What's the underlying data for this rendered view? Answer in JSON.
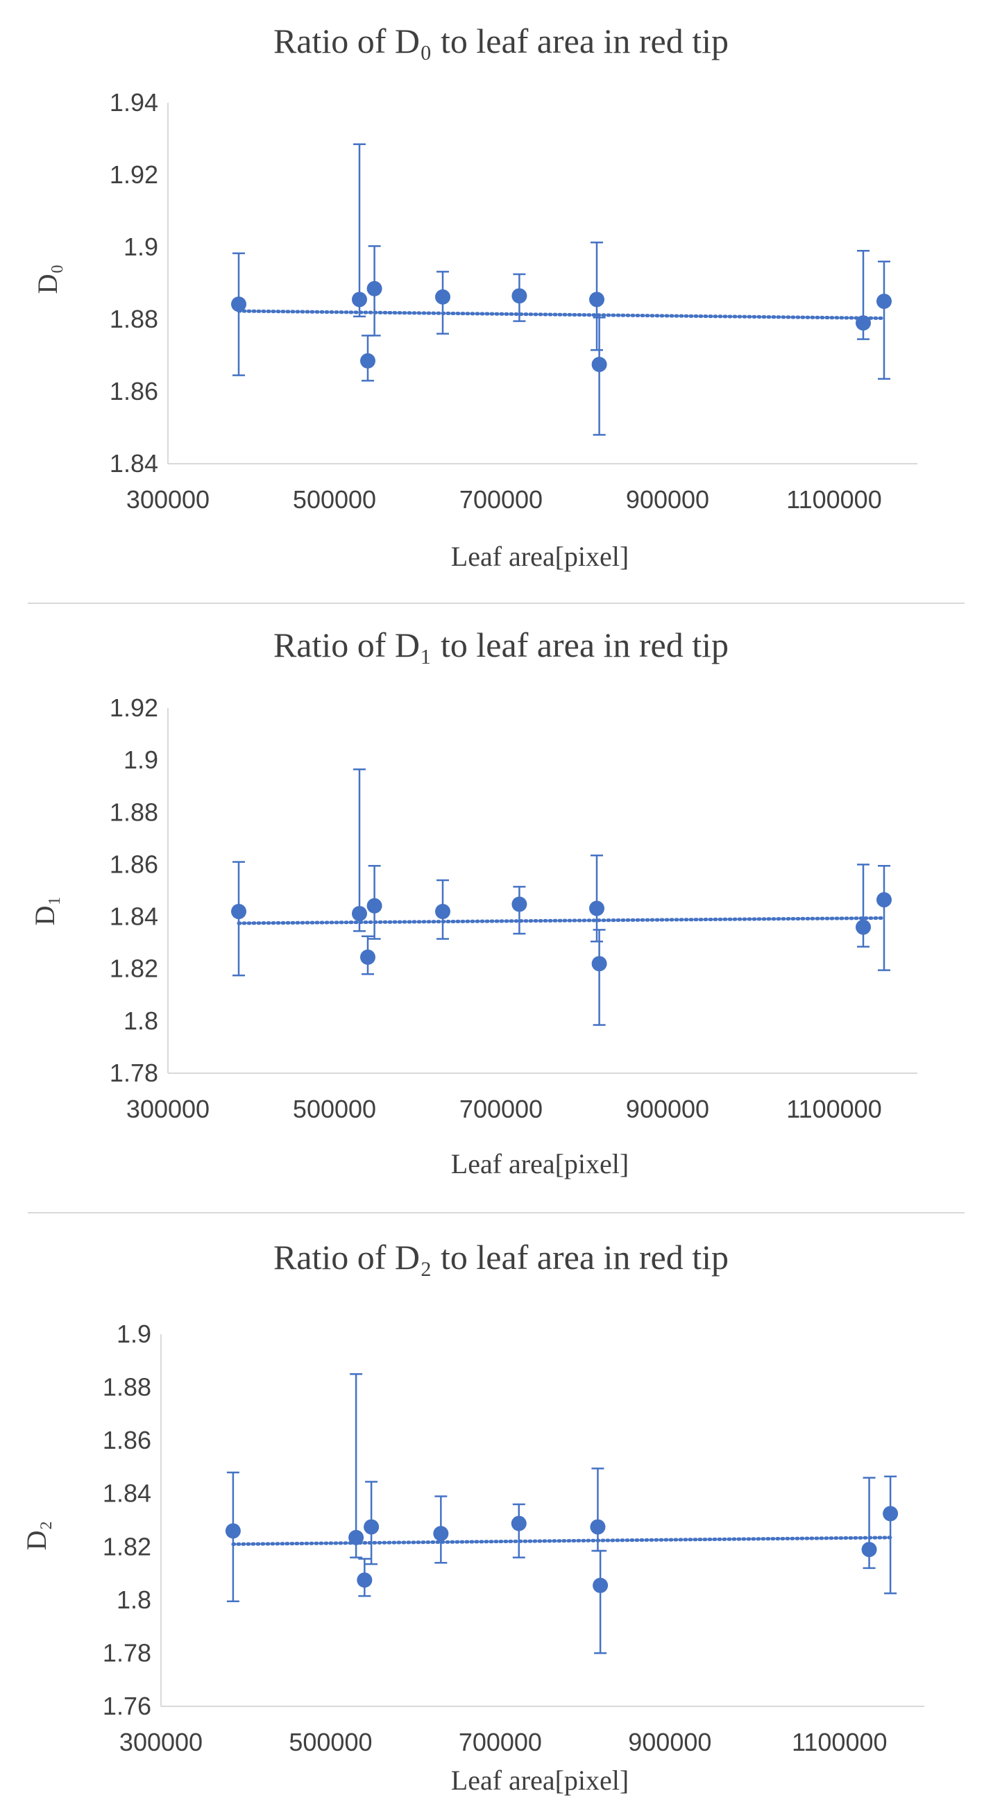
{
  "chart_data": [
    {
      "type": "scatter",
      "title": "Ratio of D₀ to leaf area in red tip",
      "xlabel": "Leaf area[pixel]",
      "ylabel": "D₀",
      "xlim": [
        300000,
        1200000
      ],
      "ylim": [
        1.84,
        1.94
      ],
      "xticks": [
        300000,
        500000,
        700000,
        900000,
        1100000
      ],
      "yticks": [
        1.84,
        1.86,
        1.88,
        1.9,
        1.92,
        1.94
      ],
      "xtick_labels": [
        "300000",
        "500000",
        "700000",
        "900000",
        "1100000"
      ],
      "ytick_labels": [
        "1.84",
        "1.86",
        "1.88",
        "1.9",
        "1.92",
        "1.94"
      ],
      "grid": false,
      "trendline": {
        "style": "dotted",
        "y_start": 1.8823,
        "y_end": 1.8803
      },
      "points": [
        {
          "x": 385000,
          "y": 1.8842,
          "lo": 1.8645,
          "hi": 1.8983
        },
        {
          "x": 530000,
          "y": 1.8855,
          "lo": 1.8808,
          "hi": 1.9285
        },
        {
          "x": 540000,
          "y": 1.8685,
          "lo": 1.863,
          "hi": 1.8755
        },
        {
          "x": 548000,
          "y": 1.8885,
          "lo": 1.8755,
          "hi": 1.9003
        },
        {
          "x": 630000,
          "y": 1.8862,
          "lo": 1.876,
          "hi": 1.8932
        },
        {
          "x": 722000,
          "y": 1.8865,
          "lo": 1.8795,
          "hi": 1.8925
        },
        {
          "x": 815000,
          "y": 1.8855,
          "lo": 1.8715,
          "hi": 1.9013
        },
        {
          "x": 818000,
          "y": 1.8675,
          "lo": 1.848,
          "hi": 1.8805
        },
        {
          "x": 1135000,
          "y": 1.879,
          "lo": 1.8745,
          "hi": 1.899
        },
        {
          "x": 1160000,
          "y": 1.885,
          "lo": 1.8635,
          "hi": 1.896
        }
      ]
    },
    {
      "type": "scatter",
      "title": "Ratio of D₁ to leaf area in red tip",
      "xlabel": "Leaf area[pixel]",
      "ylabel": "D₁",
      "xlim": [
        300000,
        1200000
      ],
      "ylim": [
        1.78,
        1.92
      ],
      "xticks": [
        300000,
        500000,
        700000,
        900000,
        1100000
      ],
      "yticks": [
        1.78,
        1.8,
        1.82,
        1.84,
        1.86,
        1.88,
        1.9,
        1.92
      ],
      "xtick_labels": [
        "300000",
        "500000",
        "700000",
        "900000",
        "1100000"
      ],
      "ytick_labels": [
        "1.78",
        "1.8",
        "1.82",
        "1.84",
        "1.86",
        "1.88",
        "1.9",
        "1.92"
      ],
      "grid": false,
      "trendline": {
        "style": "dotted",
        "y_start": 1.8375,
        "y_end": 1.8395
      },
      "points": [
        {
          "x": 385000,
          "y": 1.842,
          "lo": 1.8175,
          "hi": 1.861
        },
        {
          "x": 530000,
          "y": 1.8412,
          "lo": 1.8345,
          "hi": 1.8965
        },
        {
          "x": 540000,
          "y": 1.8245,
          "lo": 1.818,
          "hi": 1.8325
        },
        {
          "x": 548000,
          "y": 1.8442,
          "lo": 1.8315,
          "hi": 1.8595
        },
        {
          "x": 630000,
          "y": 1.842,
          "lo": 1.8315,
          "hi": 1.854
        },
        {
          "x": 722000,
          "y": 1.8448,
          "lo": 1.8335,
          "hi": 1.8515
        },
        {
          "x": 815000,
          "y": 1.8432,
          "lo": 1.8305,
          "hi": 1.8635
        },
        {
          "x": 818000,
          "y": 1.822,
          "lo": 1.7985,
          "hi": 1.835
        },
        {
          "x": 1135000,
          "y": 1.836,
          "lo": 1.8285,
          "hi": 1.86
        },
        {
          "x": 1160000,
          "y": 1.8465,
          "lo": 1.8195,
          "hi": 1.8595
        }
      ]
    },
    {
      "type": "scatter",
      "title": "Ratio of D₂ to leaf area in red tip",
      "xlabel": "Leaf area[pixel]",
      "ylabel": "D₂",
      "xlim": [
        300000,
        1200000
      ],
      "ylim": [
        1.76,
        1.9
      ],
      "xticks": [
        300000,
        500000,
        700000,
        900000,
        1100000
      ],
      "yticks": [
        1.76,
        1.78,
        1.8,
        1.82,
        1.84,
        1.86,
        1.88,
        1.9
      ],
      "xtick_labels": [
        "300000",
        "500000",
        "700000",
        "900000",
        "1100000"
      ],
      "ytick_labels": [
        "1.76",
        "1.78",
        "1.8",
        "1.82",
        "1.84",
        "1.86",
        "1.88",
        "1.9"
      ],
      "grid": false,
      "trendline": {
        "style": "dotted",
        "y_start": 1.821,
        "y_end": 1.8235
      },
      "points": [
        {
          "x": 385000,
          "y": 1.826,
          "lo": 1.7995,
          "hi": 1.848
        },
        {
          "x": 530000,
          "y": 1.8235,
          "lo": 1.816,
          "hi": 1.885
        },
        {
          "x": 540000,
          "y": 1.8075,
          "lo": 1.8015,
          "hi": 1.8155
        },
        {
          "x": 548000,
          "y": 1.8275,
          "lo": 1.8135,
          "hi": 1.8445
        },
        {
          "x": 630000,
          "y": 1.825,
          "lo": 1.814,
          "hi": 1.839
        },
        {
          "x": 722000,
          "y": 1.8288,
          "lo": 1.816,
          "hi": 1.836
        },
        {
          "x": 815000,
          "y": 1.8275,
          "lo": 1.8185,
          "hi": 1.8495
        },
        {
          "x": 818000,
          "y": 1.8055,
          "lo": 1.78,
          "hi": 1.8185
        },
        {
          "x": 1135000,
          "y": 1.819,
          "lo": 1.812,
          "hi": 1.846
        },
        {
          "x": 1160000,
          "y": 1.8325,
          "lo": 1.8025,
          "hi": 1.8465
        }
      ]
    }
  ],
  "colors": {
    "marker": "#4472C4",
    "axis": "#d9d9d9",
    "text": "#404040",
    "divider": "#d9d9d9"
  }
}
